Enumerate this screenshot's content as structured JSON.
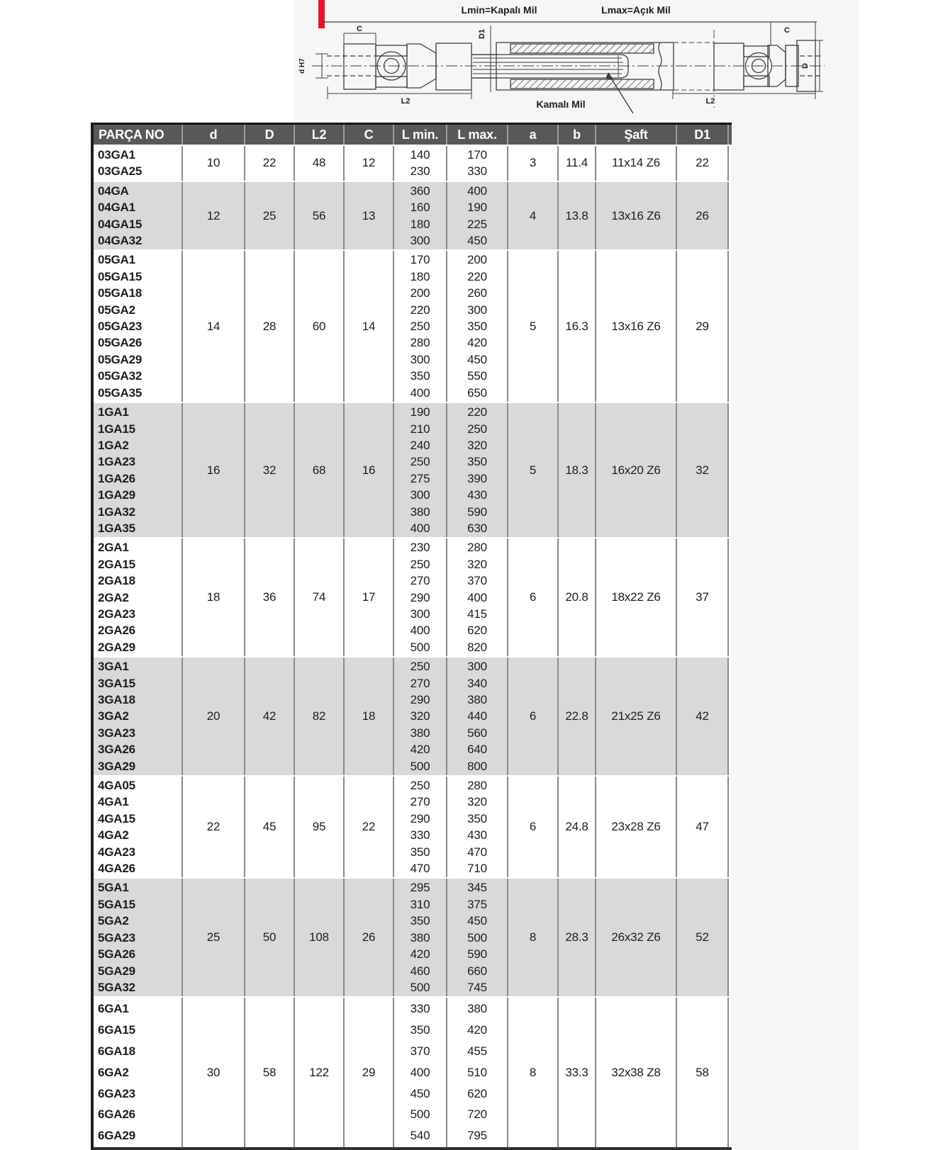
{
  "colors": {
    "accent_red": "#e8112d",
    "header_bg": "#58585a",
    "row_gray": "#d9d9d9",
    "scan_bg": "#f6f6f6"
  },
  "diagram": {
    "top_left_label": "Lmin=Kapalı Mil",
    "top_right_label": "Lmax=Açık Mil",
    "callout_label": "Kamalı Mil",
    "dim_labels": {
      "c_left": "C",
      "c_right": "C",
      "d_bore": "d H7",
      "d1": "D1",
      "d_right": "D",
      "l2_left": "L2",
      "l2_right": "L2"
    }
  },
  "table": {
    "header": {
      "columns": [
        "PARÇA NO",
        "d",
        "D",
        "L2",
        "C",
        "L min.",
        "L max.",
        "a",
        "b",
        "Şaft",
        "D1"
      ]
    },
    "groups": [
      {
        "part_nos": [
          "03GA1",
          "03GA25"
        ],
        "d": "10",
        "D": "22",
        "L2": "48",
        "C": "12",
        "l_min": [
          "140",
          "230"
        ],
        "l_max": [
          "170",
          "330"
        ],
        "a": "3",
        "b": "11.4",
        "saft": "11x14 Z6",
        "D1": "22"
      },
      {
        "part_nos": [
          "04GA",
          "04GA1",
          "04GA15",
          "04GA32"
        ],
        "d": "12",
        "D": "25",
        "L2": "56",
        "C": "13",
        "l_min": [
          "360",
          "160",
          "180",
          "300"
        ],
        "l_max": [
          "400",
          "190",
          "225",
          "450"
        ],
        "a": "4",
        "b": "13.8",
        "saft": "13x16 Z6",
        "D1": "26"
      },
      {
        "part_nos": [
          "05GA1",
          "05GA15",
          "05GA18",
          "05GA2",
          "05GA23",
          "05GA26",
          "05GA29",
          "05GA32",
          "05GA35"
        ],
        "d": "14",
        "D": "28",
        "L2": "60",
        "C": "14",
        "l_min": [
          "170",
          "180",
          "200",
          "220",
          "250",
          "280",
          "300",
          "350",
          "400"
        ],
        "l_max": [
          "200",
          "220",
          "260",
          "300",
          "350",
          "420",
          "450",
          "550",
          "650"
        ],
        "a": "5",
        "b": "16.3",
        "saft": "13x16 Z6",
        "D1": "29"
      },
      {
        "part_nos": [
          "1GA1",
          "1GA15",
          "1GA2",
          "1GA23",
          "1GA26",
          "1GA29",
          "1GA32",
          "1GA35"
        ],
        "d": "16",
        "D": "32",
        "L2": "68",
        "C": "16",
        "l_min": [
          "190",
          "210",
          "240",
          "250",
          "275",
          "300",
          "380",
          "400"
        ],
        "l_max": [
          "220",
          "250",
          "320",
          "350",
          "390",
          "430",
          "590",
          "630"
        ],
        "a": "5",
        "b": "18.3",
        "saft": "16x20 Z6",
        "D1": "32"
      },
      {
        "part_nos": [
          "2GA1",
          "2GA15",
          "2GA18",
          "2GA2",
          "2GA23",
          "2GA26",
          "2GA29"
        ],
        "d": "18",
        "D": "36",
        "L2": "74",
        "C": "17",
        "l_min": [
          "230",
          "250",
          "270",
          "290",
          "300",
          "400",
          "500"
        ],
        "l_max": [
          "280",
          "320",
          "370",
          "400",
          "415",
          "620",
          "820"
        ],
        "a": "6",
        "b": "20.8",
        "saft": "18x22 Z6",
        "D1": "37"
      },
      {
        "part_nos": [
          "3GA1",
          "3GA15",
          "3GA18",
          "3GA2",
          "3GA23",
          "3GA26",
          "3GA29"
        ],
        "d": "20",
        "D": "42",
        "L2": "82",
        "C": "18",
        "l_min": [
          "250",
          "270",
          "290",
          "320",
          "380",
          "420",
          "500"
        ],
        "l_max": [
          "300",
          "340",
          "380",
          "440",
          "560",
          "640",
          "800"
        ],
        "a": "6",
        "b": "22.8",
        "saft": "21x25 Z6",
        "D1": "42"
      },
      {
        "part_nos": [
          "4GA05",
          "4GA1",
          "4GA15",
          "4GA2",
          "4GA23",
          "4GA26"
        ],
        "d": "22",
        "D": "45",
        "L2": "95",
        "C": "22",
        "l_min": [
          "250",
          "270",
          "290",
          "330",
          "350",
          "470"
        ],
        "l_max": [
          "280",
          "320",
          "350",
          "430",
          "470",
          "710"
        ],
        "a": "6",
        "b": "24.8",
        "saft": "23x28 Z6",
        "D1": "47"
      },
      {
        "part_nos": [
          "5GA1",
          "5GA15",
          "5GA2",
          "5GA23",
          "5GA26",
          "5GA29",
          "5GA32"
        ],
        "d": "25",
        "D": "50",
        "L2": "108",
        "C": "26",
        "l_min": [
          "295",
          "310",
          "350",
          "380",
          "420",
          "460",
          "500"
        ],
        "l_max": [
          "345",
          "375",
          "450",
          "500",
          "590",
          "660",
          "745"
        ],
        "a": "8",
        "b": "28.3",
        "saft": "26x32 Z6",
        "D1": "52"
      },
      {
        "part_nos": [
          "6GA1",
          "6GA15",
          "6GA18",
          "6GA2",
          "6GA23",
          "6GA26",
          "6GA29"
        ],
        "d": "30",
        "D": "58",
        "L2": "122",
        "C": "29",
        "l_min": [
          "330",
          "350",
          "370",
          "400",
          "450",
          "500",
          "540"
        ],
        "l_max": [
          "380",
          "420",
          "455",
          "510",
          "620",
          "720",
          "795"
        ],
        "a": "8",
        "b": "33.3",
        "saft": "32x38 Z8",
        "D1": "58"
      }
    ]
  }
}
